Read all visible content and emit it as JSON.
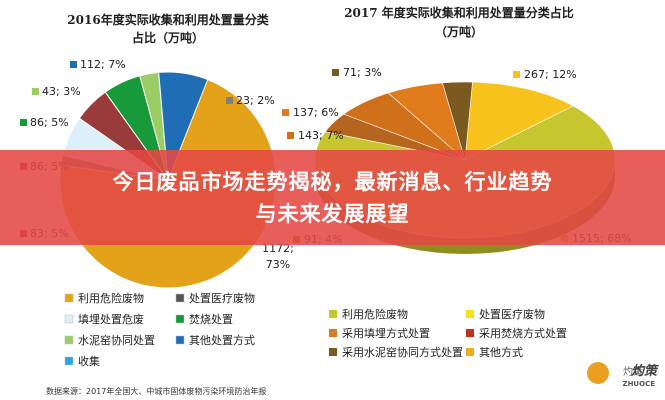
{
  "banner": {
    "text": "今日废品市场走势揭秘，最新消息、行业趋势与未来发展展望"
  },
  "watermark": {
    "account": "灼策",
    "brand_cn": "灼策",
    "brand_en": "ZHUOCE",
    "logo_color": "#e9a020"
  },
  "source_note": "数据来源：2017年全国大、中城市固体废物污染环境防治年报",
  "chart_data": [
    {
      "type": "pie",
      "title_lines": [
        "2016年度实际收集和利用处置量分类",
        "占比（万吨）"
      ],
      "slices": [
        {
          "name": "利用危险废物",
          "value": 1172,
          "percent": 73,
          "label": "1172; 73%",
          "color": "#e3a21a"
        },
        {
          "name": "处置医疗废物",
          "value": 23,
          "percent": 2,
          "label": "23; 2%",
          "color": "#7f7f7f"
        },
        {
          "name": "填埋处置危废",
          "value": 0,
          "percent": 0,
          "label": "",
          "color": "#ddeff8"
        },
        {
          "name": "焚烧处置",
          "value": 83,
          "percent": 5,
          "label": "83; 5%",
          "color": "#9a3b3b"
        },
        {
          "name": "水泥窑协同处置",
          "value": 86,
          "percent": 5,
          "label": "86; 5%",
          "color": "#189a3a"
        },
        {
          "name": "其他处置方式",
          "value": 43,
          "percent": 3,
          "label": "43; 3%",
          "color": "#9acd65"
        },
        {
          "name": "收集",
          "value": 112,
          "percent": 7,
          "label": "112; 7%",
          "color": "#1f6db5"
        }
      ],
      "partial_labels": [
        "86; 5%"
      ],
      "legend": [
        {
          "name": "利用危险废物",
          "color": "#e3a21a"
        },
        {
          "name": "处置医疗废物",
          "color": "#555555"
        },
        {
          "name": "填埋处置危废",
          "color": "#ddeff8"
        },
        {
          "name": "焚烧处置",
          "color": "#189a3a"
        },
        {
          "name": "水泥窑协同处置",
          "color": "#9acd65"
        },
        {
          "name": "其他处置方式",
          "color": "#1f6db5"
        },
        {
          "name": "收集",
          "color": "#2aa6df"
        }
      ]
    },
    {
      "type": "pie",
      "title_lines": [
        "2017 年度实际收集和利用处置量分类占比",
        "（万吨）"
      ],
      "slices": [
        {
          "name": "利用危险废物",
          "value": 1515,
          "percent": 68,
          "label": "1515; 68%",
          "color": "#c8c62e"
        },
        {
          "name": "处置医疗废物",
          "value": 267,
          "percent": 12,
          "label": "267; 12%",
          "color": "#f6c21b"
        },
        {
          "name": "采用填埋方式处置",
          "value": 137,
          "percent": 6,
          "label": "137; 6%",
          "color": "#e07b1c"
        },
        {
          "name": "采用焚烧方式处置",
          "value": 143,
          "percent": 7,
          "label": "143; 7%",
          "color": "#d0701a"
        },
        {
          "name": "采用水泥窑协同方式处置",
          "value": 91,
          "percent": 4,
          "label": "91; 4%",
          "color": "#b5651d"
        },
        {
          "name": "其他方式",
          "value": 71,
          "percent": 3,
          "label": "71; 3%",
          "color": "#7a5a1e"
        }
      ],
      "legend": [
        {
          "name": "利用危险废物",
          "color": "#c8c62e"
        },
        {
          "name": "处置医疗废物",
          "color": "#f6e21b"
        },
        {
          "name": "采用填埋方式处置",
          "color": "#e07b1c"
        },
        {
          "name": "采用焚烧方式处置",
          "color": "#c0301a"
        },
        {
          "name": "采用水泥窑协同方式处置",
          "color": "#7a5a1e"
        },
        {
          "name": "其他方式",
          "color": "#e6b01a"
        }
      ]
    }
  ]
}
